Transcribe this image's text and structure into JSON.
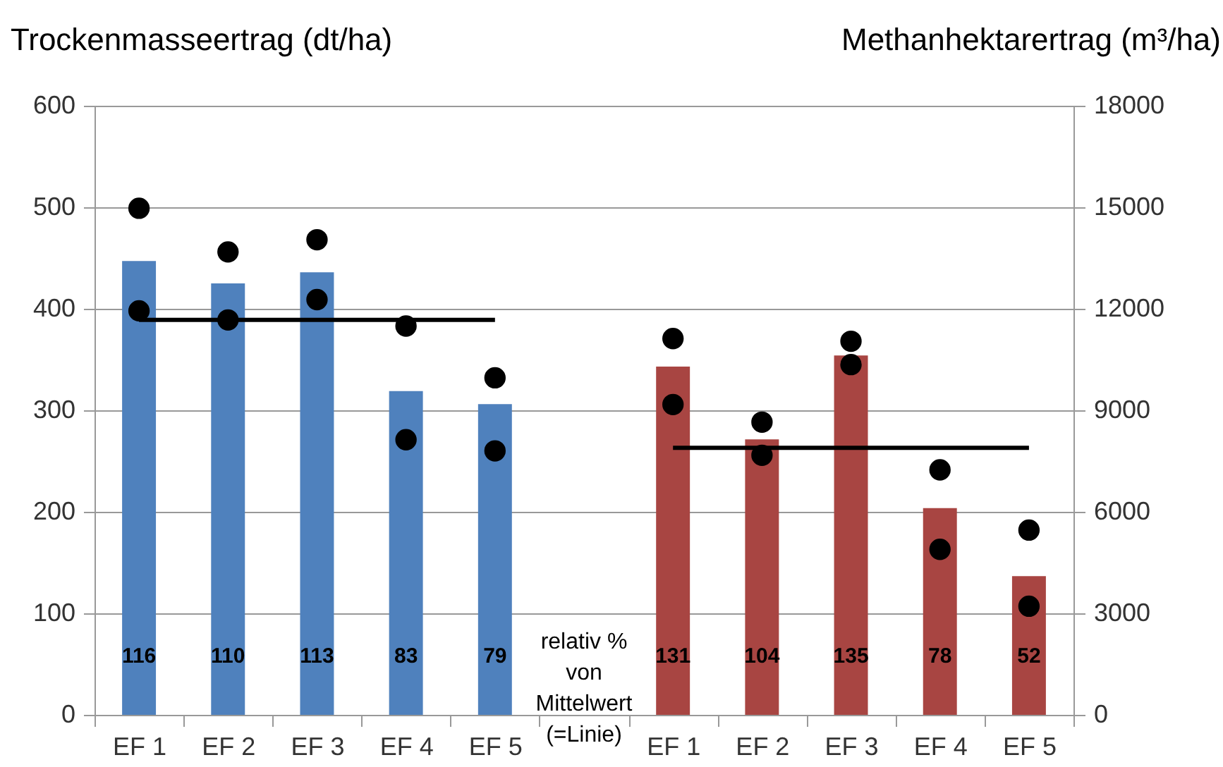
{
  "chart_data": {
    "type": "bar",
    "ylabel": "Trockenmasseertrag (dt/ha)",
    "y2label": "Methanhektarertrag (m³/ha)",
    "categories": [
      "EF 1",
      "EF 2",
      "EF 3",
      "EF 4",
      "EF 5",
      null,
      "EF 1",
      "EF 2",
      "EF 3",
      "EF 4",
      "EF 5"
    ],
    "series": [
      {
        "axis": "y",
        "color": "#4f81bd",
        "values": [
          447,
          425,
          436,
          319,
          306,
          null,
          null,
          null,
          null,
          null,
          null
        ]
      },
      {
        "axis": "y2",
        "color": "#a84542",
        "values": [
          null,
          null,
          null,
          null,
          null,
          null,
          10290,
          8140,
          10620,
          6110,
          4100
        ]
      },
      {
        "type": "line",
        "axis": "y",
        "color": "#000000",
        "values": [
          389,
          389,
          389,
          389,
          389,
          null,
          null,
          null,
          null,
          null,
          null
        ]
      },
      {
        "type": "line",
        "axis": "y2",
        "color": "#000000",
        "values": [
          null,
          null,
          null,
          null,
          null,
          null,
          7890,
          7890,
          7890,
          7890,
          7890
        ]
      },
      {
        "type": "scatter",
        "axis": "y",
        "marker": "circle",
        "color": "#000000",
        "values": [
          499,
          456,
          468,
          383,
          332,
          null,
          null,
          null,
          null,
          null,
          null
        ]
      },
      {
        "type": "scatter",
        "axis": "y",
        "marker": "circle",
        "color": "#000000",
        "values": [
          398,
          389,
          409,
          271,
          260,
          null,
          null,
          null,
          null,
          null,
          null
        ]
      },
      {
        "type": "scatter",
        "axis": "y2",
        "marker": "circle",
        "color": "#000000",
        "values": [
          null,
          null,
          null,
          null,
          null,
          null,
          11120,
          8650,
          11040,
          7240,
          5460
        ]
      },
      {
        "type": "scatter",
        "axis": "y2",
        "marker": "circle",
        "color": "#000000",
        "values": [
          null,
          null,
          null,
          null,
          null,
          null,
          9170,
          7670,
          10350,
          4890,
          3210
        ]
      }
    ],
    "annotations": [
      "116",
      "110",
      "113",
      "83",
      "79",
      "relativ %\nvon\nMittelwert\n(=Linie)",
      "131",
      "104",
      "135",
      "78",
      "52"
    ],
    "ylim": [
      0,
      600
    ],
    "yticks": [
      0,
      100,
      200,
      300,
      400,
      500,
      600
    ],
    "y2lim": [
      0,
      18000
    ],
    "y2ticks": [
      0,
      3000,
      6000,
      9000,
      12000,
      15000,
      18000
    ],
    "grid": true
  }
}
